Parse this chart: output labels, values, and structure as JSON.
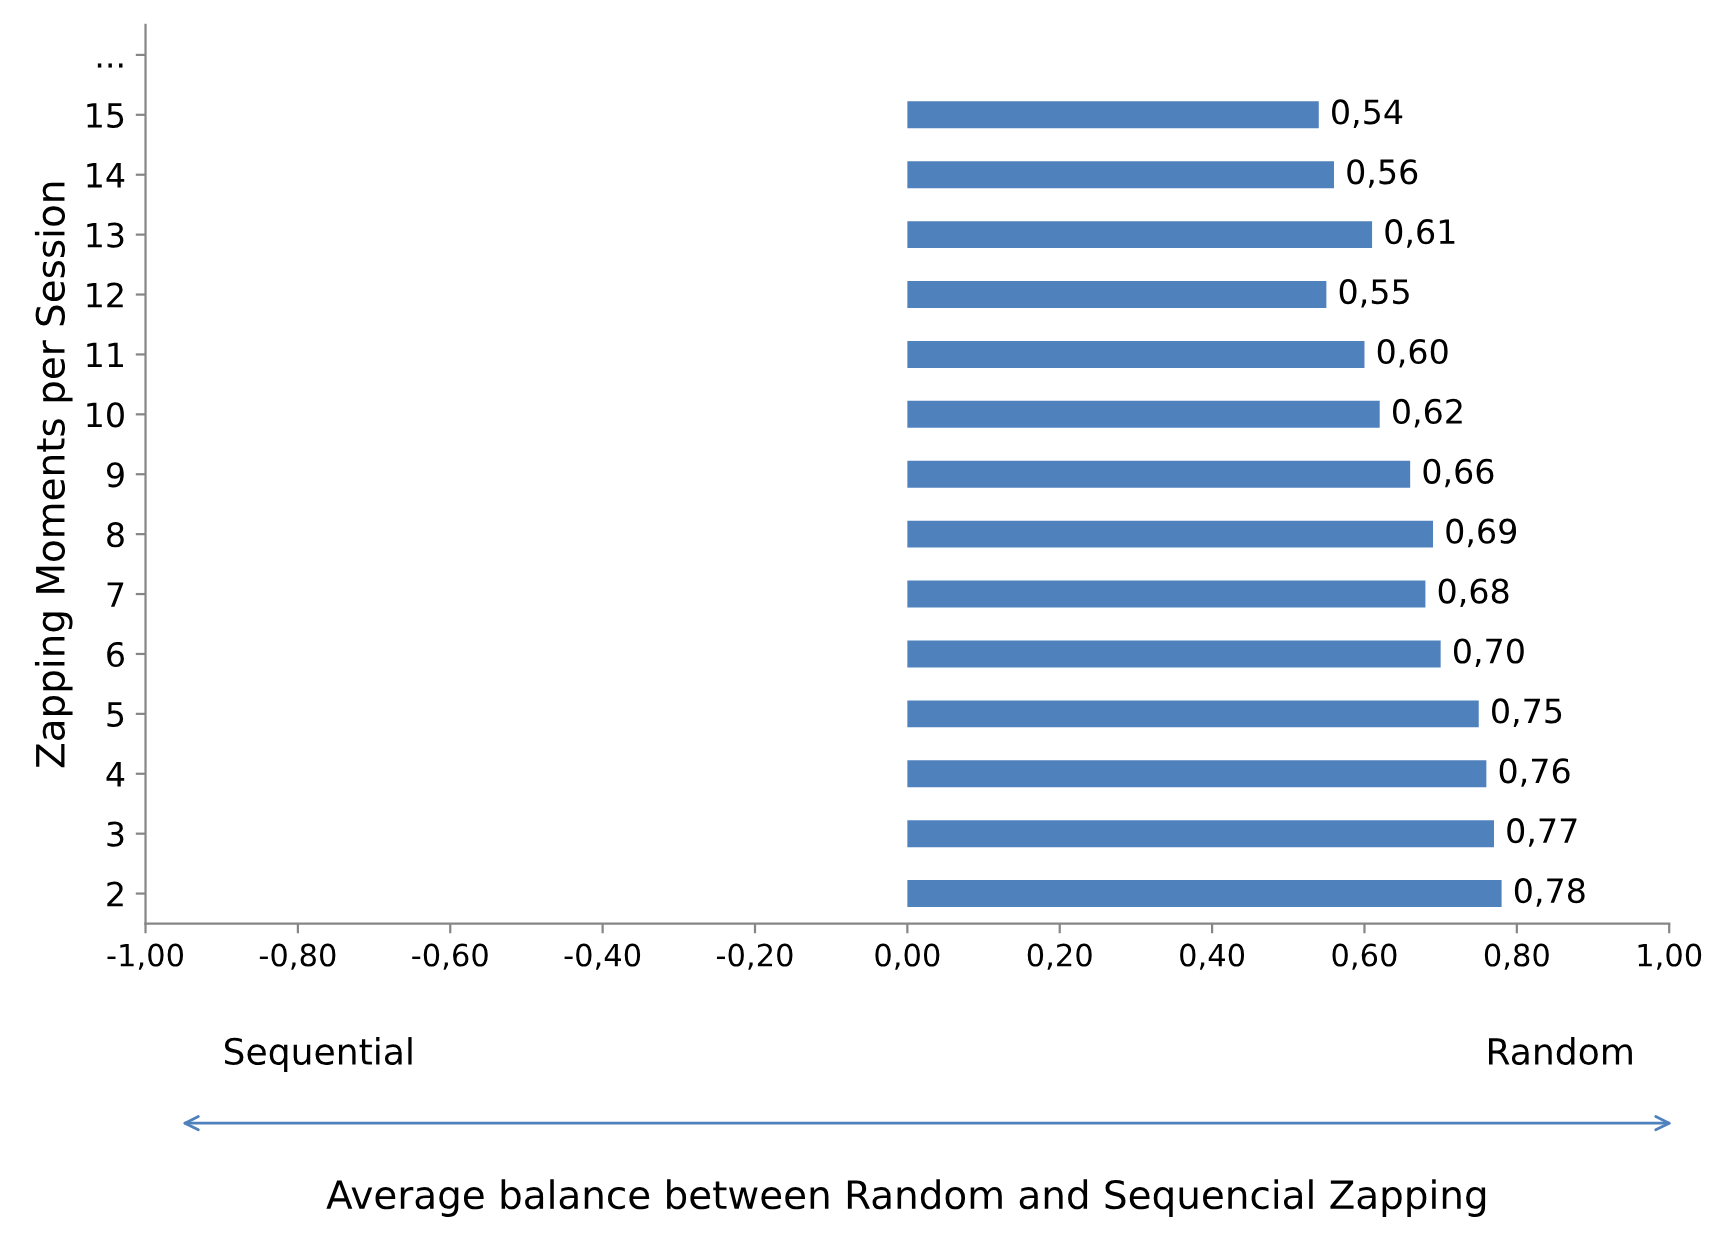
{
  "chart_data": {
    "type": "bar",
    "orientation": "horizontal",
    "ylabel": "Zapping Moments per Session",
    "categories": [
      "...",
      "15",
      "14",
      "13",
      "12",
      "11",
      "10",
      "9",
      "8",
      "7",
      "6",
      "5",
      "4",
      "3",
      "2"
    ],
    "values": [
      null,
      0.54,
      0.56,
      0.61,
      0.55,
      0.6,
      0.62,
      0.66,
      0.69,
      0.68,
      0.7,
      0.75,
      0.76,
      0.77,
      0.78
    ],
    "value_labels": [
      null,
      "0,54",
      "0,56",
      "0,61",
      "0,55",
      "0,60",
      "0,62",
      "0,66",
      "0,69",
      "0,68",
      "0,70",
      "0,75",
      "0,76",
      "0,77",
      "0,78"
    ],
    "color": "#4f81bd",
    "xlim": [
      -1.0,
      1.0
    ],
    "xticks": [
      {
        "value": -1.0,
        "label": "-1,00"
      },
      {
        "value": -0.8,
        "label": "-0,80"
      },
      {
        "value": -0.6,
        "label": "-0,60"
      },
      {
        "value": -0.4,
        "label": "-0,40"
      },
      {
        "value": -0.2,
        "label": "-0,20"
      },
      {
        "value": 0.0,
        "label": "0,00"
      },
      {
        "value": 0.2,
        "label": "0,20"
      },
      {
        "value": 0.4,
        "label": "0,40"
      },
      {
        "value": 0.6,
        "label": "0,60"
      },
      {
        "value": 0.8,
        "label": "0,80"
      },
      {
        "value": 1.0,
        "label": "1,00"
      }
    ],
    "grid": false,
    "annotations": [
      "Sequential",
      "Random",
      "Average balance between Random and Sequencial Zapping"
    ]
  }
}
